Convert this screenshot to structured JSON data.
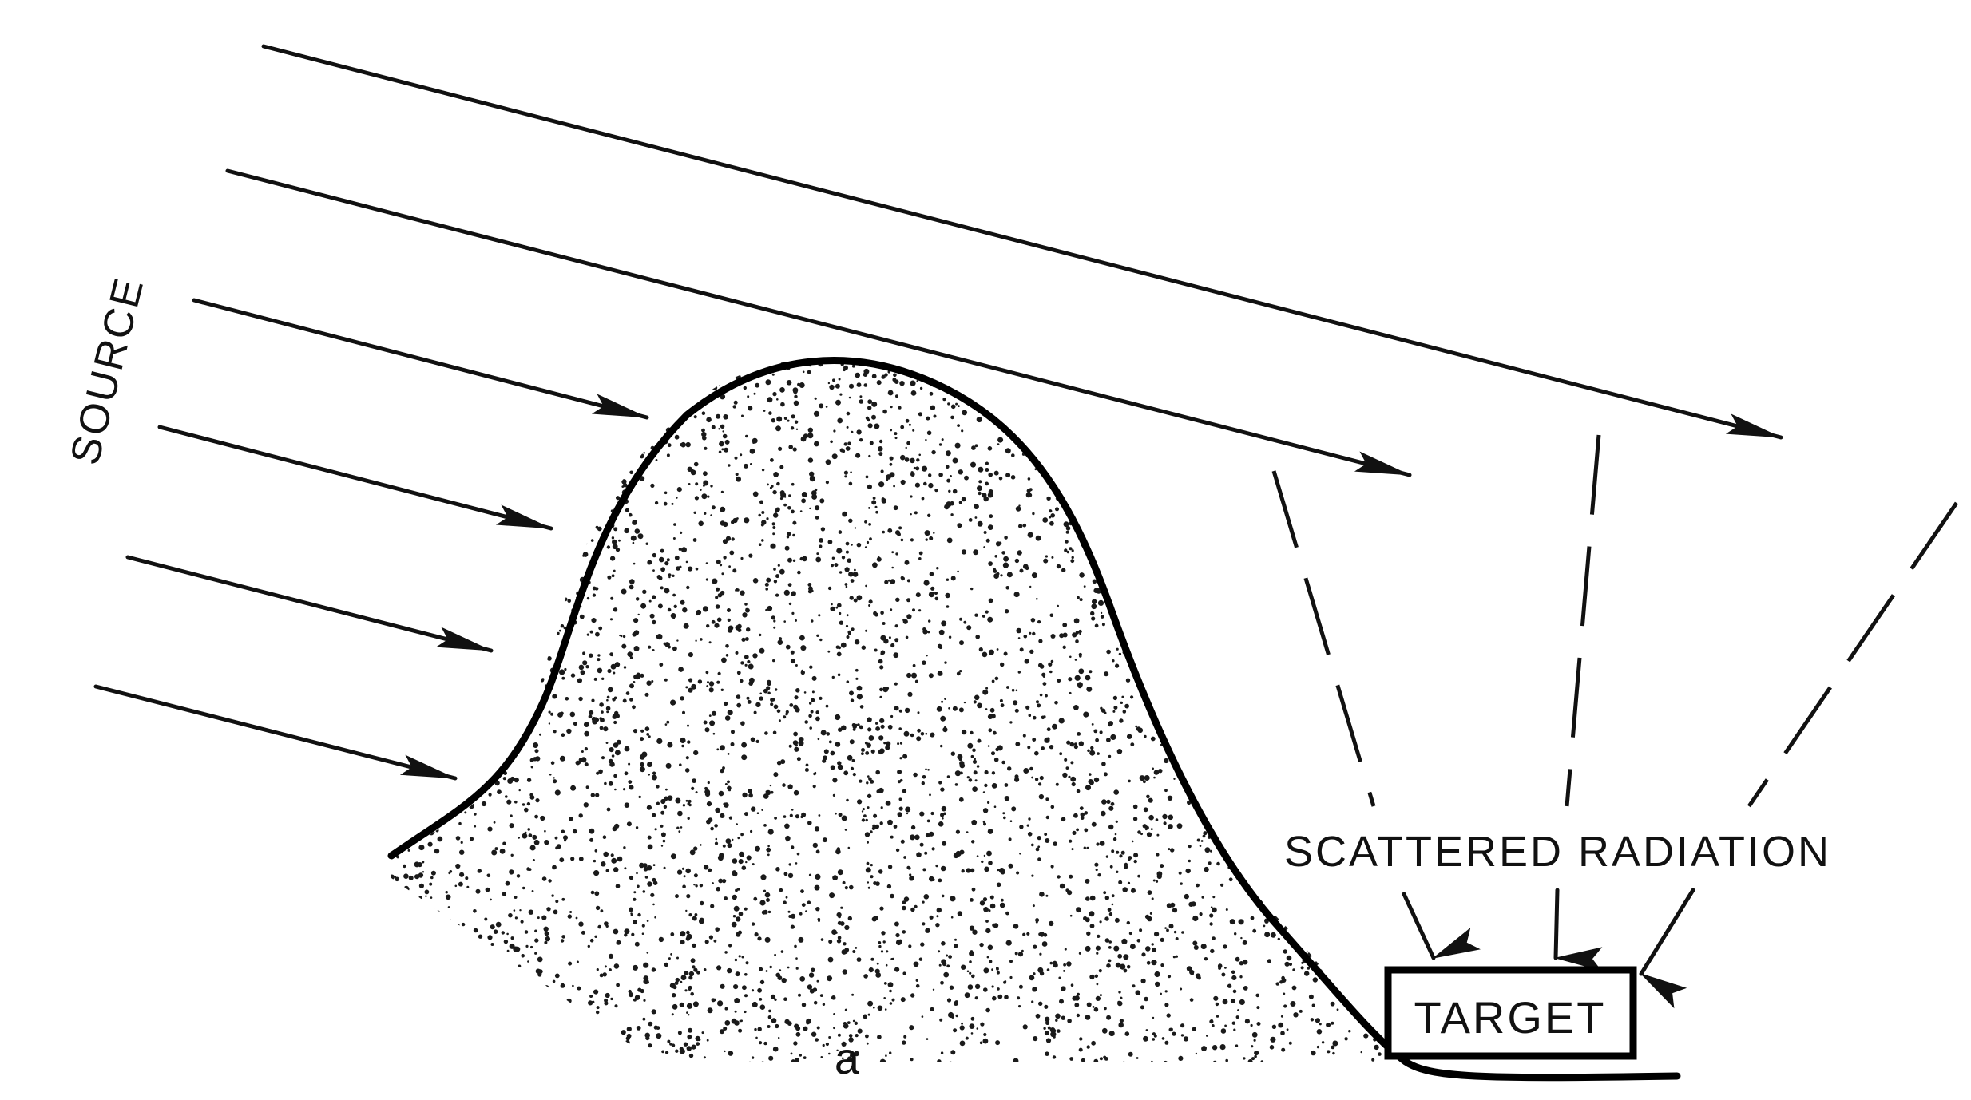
{
  "diagram": {
    "source_label": "SOURCE",
    "scattered_label": "SCATTERED RADIATION",
    "target_label": "TARGET",
    "panel_label": "a",
    "colors": {
      "ink": "#111111",
      "background": "#ffffff"
    }
  }
}
